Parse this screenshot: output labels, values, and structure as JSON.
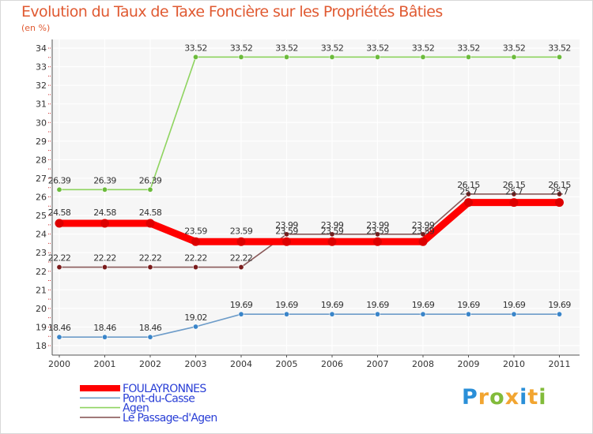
{
  "title": "Evolution du Taux de Taxe Foncière sur les Propriétés Bâties",
  "unit": "(en %)",
  "logo": {
    "letters": [
      "P",
      "r",
      "o",
      "x",
      "i",
      "t",
      "i"
    ],
    "colors": [
      "#2a8fd8",
      "#f2a531",
      "#82bb3a",
      "#f2a531",
      "#2a8fd8",
      "#f2a531",
      "#82bb3a"
    ]
  },
  "chart_data": {
    "type": "line",
    "title": "Evolution du Taux de Taxe Foncière sur les Propriétés Bâties",
    "ylabel": "(en %)",
    "xlabel": "",
    "ylim": [
      18,
      34
    ],
    "yticks": [
      "18",
      "19",
      "20",
      "21",
      "22",
      "23",
      "24",
      "25",
      "26",
      "27",
      "28",
      "29",
      "30",
      "31",
      "32",
      "33",
      "34"
    ],
    "categories": [
      "2000",
      "2001",
      "2002",
      "2003",
      "2004",
      "2005",
      "2006",
      "2007",
      "2008",
      "2009",
      "2010",
      "2011"
    ],
    "grid": true,
    "series": [
      {
        "name": "FOULAYRONNES",
        "color": "#ff0000",
        "marker": "#dd0000",
        "thick": true,
        "values": [
          24.58,
          24.58,
          24.58,
          23.59,
          23.59,
          23.59,
          23.59,
          23.59,
          23.59,
          25.7,
          25.7,
          25.7
        ],
        "labels": [
          "24.58",
          "24.58",
          "24.58",
          "23.59",
          "23.59",
          "23.59",
          "23.59",
          "23.59",
          "23.59",
          "25.7",
          "25.7",
          "25.7"
        ]
      },
      {
        "name": "Pont-du-Casse",
        "color": "#6d9cc9",
        "marker": "#3a85c9",
        "values": [
          18.46,
          18.46,
          18.46,
          19.02,
          19.69,
          19.69,
          19.69,
          19.69,
          19.69,
          19.69,
          19.69,
          19.69
        ],
        "labels": [
          "18.46",
          "18.46",
          "18.46",
          "19.02",
          "19.69",
          "19.69",
          "19.69",
          "19.69",
          "19.69",
          "19.69",
          "19.69",
          "19.69"
        ]
      },
      {
        "name": "Agen",
        "color": "#8fd460",
        "marker": "#6cbb3c",
        "values": [
          26.39,
          26.39,
          26.39,
          33.52,
          33.52,
          33.52,
          33.52,
          33.52,
          33.52,
          33.52,
          33.52,
          33.52
        ],
        "labels": [
          "26.39",
          "26.39",
          "26.39",
          "33.52",
          "33.52",
          "33.52",
          "33.52",
          "33.52",
          "33.52",
          "33.52",
          "33.52",
          "33.52"
        ]
      },
      {
        "name": "Le Passage-d'Agen",
        "color": "#8a5a5a",
        "marker": "#7a1c1c",
        "values": [
          22.22,
          22.22,
          22.22,
          22.22,
          22.22,
          23.99,
          23.99,
          23.99,
          23.99,
          26.15,
          26.15,
          26.15
        ],
        "labels": [
          "22.22",
          "22.22",
          "22.22",
          "22.22",
          "22.22",
          "23.99",
          "23.99",
          "23.99",
          "23.99",
          "26.15",
          "26.15",
          "26.15"
        ]
      }
    ]
  }
}
